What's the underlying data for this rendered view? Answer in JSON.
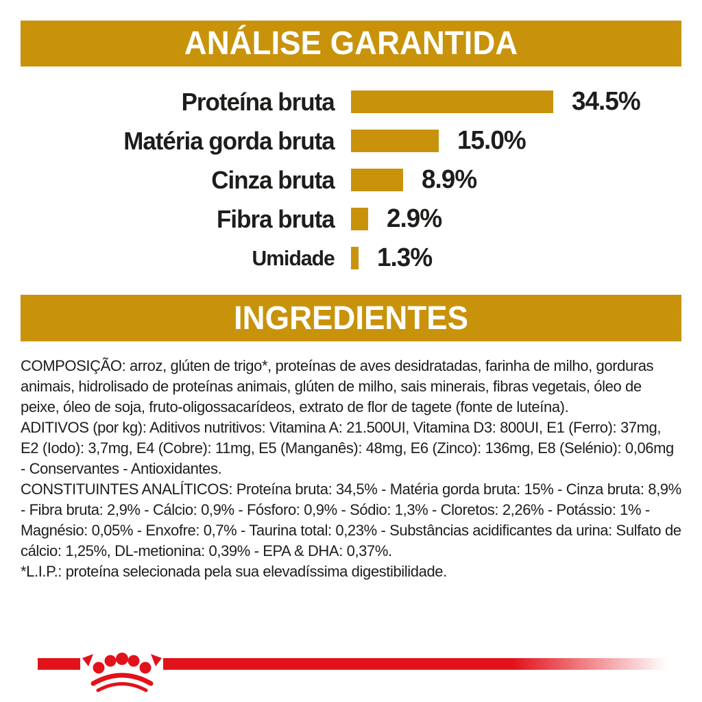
{
  "banners": {
    "analysis": "ANÁLISE GARANTIDA",
    "ingredients": "INGREDIENTES"
  },
  "chart_data": {
    "type": "bar",
    "orientation": "horizontal",
    "title": "ANÁLISE GARANTIDA",
    "categories": [
      "Proteína bruta",
      "Matéria gorda bruta",
      "Cinza bruta",
      "Fibra bruta",
      "Umidade"
    ],
    "values": [
      34.5,
      15.0,
      8.9,
      2.9,
      1.3
    ],
    "value_labels": [
      "34.5%",
      "15.0%",
      "8.9%",
      "2.9%",
      "1.3%"
    ],
    "xlim": [
      0,
      40
    ],
    "bar_color": "#C8930B",
    "legend": "none",
    "grid": "off"
  },
  "sections": {
    "composicao": "COMPOSIÇÃO: arroz, glúten de trigo*, proteínas de aves desidratadas, farinha de milho, gorduras animais, hidrolisado de proteínas animais, glúten de milho, sais minerais, fibras vegetais, óleo de peixe, óleo de soja, fruto-oligossacarídeos, extrato de flor de tagete (fonte de luteína).",
    "aditivos": "ADITIVOS (por kg): Aditivos nutritivos: Vitamina A: 21.500UI, Vitamina D3: 800UI, E1 (Ferro): 37mg, E2 (Iodo): 3,7mg, E4 (Cobre): 11mg, E5 (Manganês): 48mg, E6 (Zinco): 136mg, E8 (Selénio): 0,06mg - Conservantes - Antioxidantes.",
    "constituintes": "CONSTITUINTES ANALÍTICOS: Proteína bruta: 34,5% - Matéria gorda bruta: 15% - Cinza bruta: 8,9% - Fibra bruta: 2,9% - Cálcio: 0,9% - Fósforo: 0,9% - Sódio: 1,3% - Cloretos: 2,26% - Potássio: 1% - Magnésio: 0,05% - Enxofre: 0,7% - Taurina total: 0,23% - Substâncias acidificantes da urina: Sulfato de cálcio: 1,25%, DL-metionina: 0,39% - EPA & DHA: 0,37%.",
    "lip": "*L.I.P.: proteína selecionada pela sua elevadíssima digestibilidade."
  },
  "footer": {
    "logo": "royal-canin-crown-icon"
  },
  "colors": {
    "gold": "#C8930B",
    "red": "#E2121B",
    "text": "#1D1D1B",
    "background": "#FFFFFF"
  }
}
